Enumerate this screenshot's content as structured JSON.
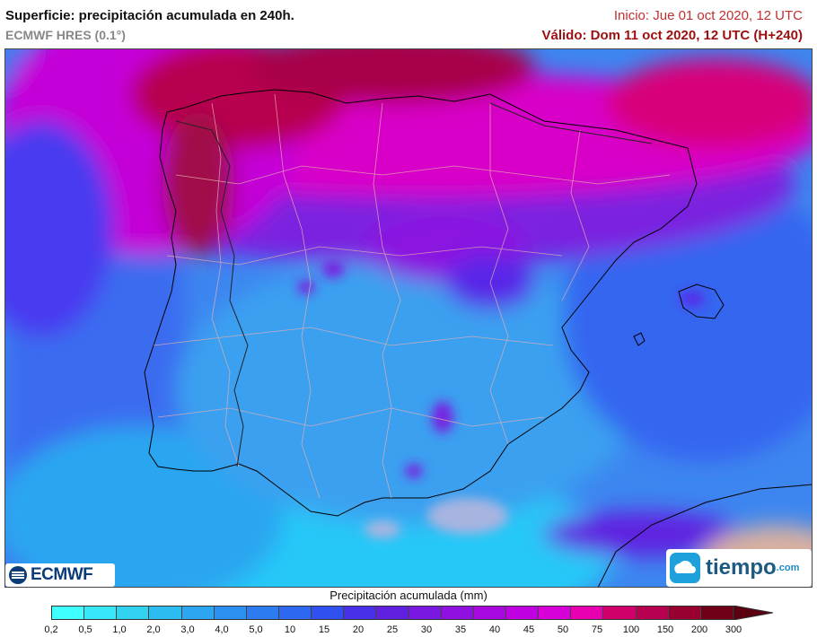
{
  "header": {
    "title": "Superficie: precipitación acumulada en 240h.",
    "model": "ECMWF HRES (0.1°)",
    "init": "Inicio: Jue 01 oct 2020, 12 UTC",
    "valid": "Válido: Dom 11 oct 2020, 12 UTC (H+240)"
  },
  "map": {
    "region": "Iberian Peninsula",
    "field": "accumulated precipitation"
  },
  "logos": {
    "ecmwf": "ECMWF",
    "tiempo": "tiempo",
    "tiempo_suffix": ".com"
  },
  "legend": {
    "title": "Precipitación acumulada (mm)",
    "ticks": [
      "0,2",
      "0,5",
      "1,0",
      "2,0",
      "3,0",
      "4,0",
      "5,0",
      "10",
      "15",
      "20",
      "25",
      "30",
      "35",
      "40",
      "45",
      "50",
      "75",
      "100",
      "150",
      "200",
      "300"
    ],
    "colors": [
      "#40ffff",
      "#38e8f8",
      "#30d2f0",
      "#2cbcf0",
      "#2ca6f0",
      "#2c90f0",
      "#2c7cf0",
      "#2c68f0",
      "#3050f0",
      "#4830e8",
      "#6020e0",
      "#7818e0",
      "#9010e0",
      "#a808e0",
      "#c000e0",
      "#d800d8",
      "#e800b0",
      "#d0006a",
      "#b80050",
      "#980030",
      "#700018"
    ]
  }
}
